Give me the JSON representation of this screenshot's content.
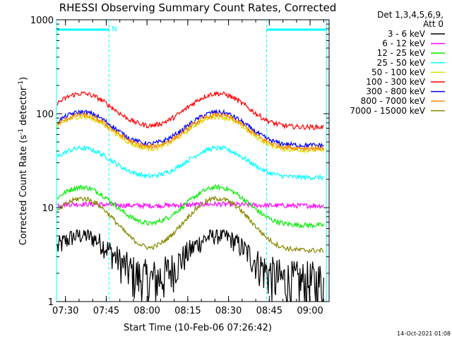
{
  "chart_data": {
    "type": "line",
    "title": "RHESSI Observing Summary Count Rates, Corrected",
    "xlabel": "Start Time (10-Feb-06 07:26:42)",
    "ylabel_main": "Corrected Count Rate (s",
    "ylabel_sup1": "-1",
    "ylabel_mid": " detector",
    "ylabel_sup2": "-1",
    "ylabel_end": ")",
    "y_scale": "log",
    "ylim": [
      1,
      1000
    ],
    "xlim": [
      "07:26:42",
      "09:07:00"
    ],
    "x_tick_labels": [
      "07:30",
      "07:45",
      "08:00",
      "08:15",
      "08:30",
      "08:45",
      "09:00"
    ],
    "y_tick_labels": [
      "1",
      "10",
      "100",
      "1000"
    ],
    "legend_title_1": "Det 1,3,4,5,6,9,",
    "legend_title_2": "Att 0",
    "legend_position": "right",
    "footer_timestamp": "14-Oct-2021 01:08",
    "night_marker_label": "N",
    "night_intervals": [
      [
        "07:26:42",
        "07:46:00"
      ],
      [
        "08:44:00",
        "09:06:00"
      ]
    ],
    "series": [
      {
        "name": "3 - 6 keV",
        "color": "#000000",
        "min": 1,
        "max": 5.5,
        "base": 1.6,
        "amp": 3.5
      },
      {
        "name": "6 - 12 keV",
        "color": "#ff00ff",
        "min": 10,
        "max": 11.5,
        "base": 10.5,
        "amp": 0.4
      },
      {
        "name": "12 - 25 keV",
        "color": "#00ee00",
        "min": 6,
        "max": 18,
        "base": 6.5,
        "amp": 10
      },
      {
        "name": "25 - 50 keV",
        "color": "#00ffff",
        "min": 20,
        "max": 45,
        "base": 21,
        "amp": 22
      },
      {
        "name": "50 - 100 keV",
        "color": "#dddd00",
        "min": 40,
        "max": 95,
        "base": 41,
        "amp": 52
      },
      {
        "name": "100 - 300 keV",
        "color": "#ff0000",
        "min": 70,
        "max": 165,
        "base": 72,
        "amp": 92
      },
      {
        "name": "300 - 800 keV",
        "color": "#0000ff",
        "min": 45,
        "max": 105,
        "base": 46,
        "amp": 58
      },
      {
        "name": "800 - 7000 keV",
        "color": "#ff8800",
        "min": 42,
        "max": 98,
        "base": 43,
        "amp": 54
      },
      {
        "name": "7000 - 15000 keV",
        "color": "#888800",
        "min": 3,
        "max": 13,
        "base": 3.5,
        "amp": 9
      }
    ]
  },
  "colors": {
    "background": "#ffffff",
    "night_marker": "#00ffff",
    "axes": "#000000"
  }
}
